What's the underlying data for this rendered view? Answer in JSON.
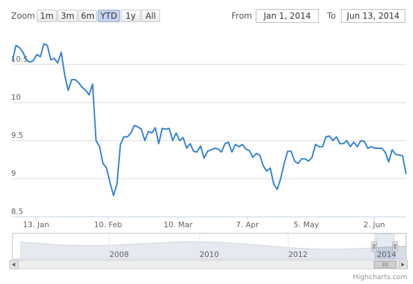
{
  "range_selector": {
    "zoom_label": "Zoom",
    "buttons": [
      {
        "label": "1m",
        "active": false
      },
      {
        "label": "3m",
        "active": false
      },
      {
        "label": "6m",
        "active": false
      },
      {
        "label": "YTD",
        "active": true
      },
      {
        "label": "1y",
        "active": false
      },
      {
        "label": "All",
        "active": false
      }
    ],
    "from_label": "From",
    "from_value": "Jan 1, 2014",
    "to_label": "To",
    "to_value": "Jun 13, 2014"
  },
  "credits": "Highcharts.com",
  "colors": {
    "series": "#2f7ed8",
    "navigator_fill": "#d9dde8",
    "navigator_line": "#b6bccb",
    "grid": "#d8d8d8"
  },
  "chart_data": {
    "type": "line",
    "title": "",
    "xlabel": "",
    "ylabel": "",
    "ylim": [
      8.5,
      10.8
    ],
    "y_ticks": [
      8.5,
      9,
      9.5,
      10,
      10.5
    ],
    "y_tick_labels": [
      "8.5",
      "9",
      "9.5",
      "10",
      "10.5"
    ],
    "x_tick_labels": [
      "13. Jan",
      "10. Feb",
      "10. Mar",
      "7. Apr",
      "5. May",
      "2. Jun"
    ],
    "grid": true,
    "legend": "none",
    "series": [
      {
        "values": [
          10.55,
          10.75,
          10.72,
          10.66,
          10.56,
          10.53,
          10.55,
          10.63,
          10.6,
          10.77,
          10.75,
          10.56,
          10.58,
          10.52,
          10.66,
          10.36,
          10.16,
          10.3,
          10.3,
          10.26,
          10.2,
          10.16,
          10.1,
          10.24,
          9.5,
          9.42,
          9.2,
          9.14,
          8.95,
          8.78,
          8.93,
          9.45,
          9.55,
          9.55,
          9.6,
          9.7,
          9.68,
          9.65,
          9.5,
          9.62,
          9.6,
          9.67,
          9.46,
          9.66,
          9.65,
          9.66,
          9.5,
          9.6,
          9.5,
          9.54,
          9.4,
          9.46,
          9.36,
          9.35,
          9.43,
          9.27,
          9.36,
          9.38,
          9.4,
          9.39,
          9.35,
          9.46,
          9.48,
          9.35,
          9.45,
          9.42,
          9.45,
          9.39,
          9.37,
          9.28,
          9.33,
          9.31,
          9.17,
          9.1,
          9.14,
          8.93,
          8.86,
          9.0,
          9.2,
          9.36,
          9.36,
          9.23,
          9.2,
          9.26,
          9.26,
          9.23,
          9.28,
          9.45,
          9.42,
          9.42,
          9.55,
          9.56,
          9.5,
          9.55,
          9.46,
          9.46,
          9.5,
          9.42,
          9.48,
          9.42,
          9.5,
          9.49,
          9.4,
          9.42,
          9.4,
          9.4,
          9.4,
          9.35,
          9.22,
          9.38,
          9.32,
          9.31,
          9.3,
          9.06
        ]
      }
    ],
    "navigator": {
      "x_tick_labels": [
        "2008",
        "2010",
        "2012",
        "2014"
      ]
    }
  }
}
